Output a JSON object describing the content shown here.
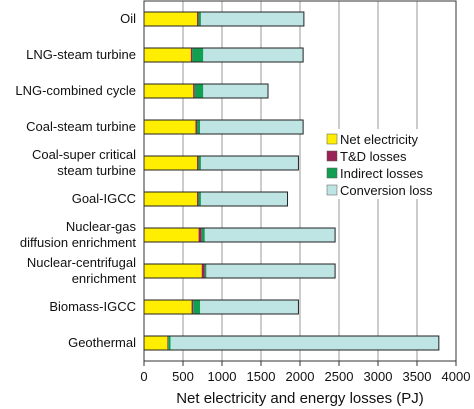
{
  "chart_data": {
    "type": "bar",
    "orientation": "horizontal",
    "stacked": true,
    "title": "",
    "xlabel": "Net electricity and energy losses (PJ)",
    "ylabel": "",
    "xlim": [
      0,
      4000
    ],
    "xticks": [
      "0",
      "500",
      "1000",
      "1500",
      "2000",
      "2500",
      "3000",
      "3500",
      "4000"
    ],
    "grid": "vertical lines",
    "legend_position": "right",
    "categories": [
      [
        "Oil"
      ],
      [
        "LNG-steam turbine"
      ],
      [
        "LNG-combined cycle"
      ],
      [
        "Coal-steam turbine"
      ],
      [
        "Coal-super critical",
        "steam turbine"
      ],
      [
        "Goal-IGCC"
      ],
      [
        "Nuclear-gas",
        "diffusion enrichment"
      ],
      [
        "Nuclear-centrifugal",
        "enrichment"
      ],
      [
        "Biomass-IGCC"
      ],
      [
        "Geothermal"
      ]
    ],
    "series": [
      {
        "name": "Net electricity",
        "color": "#ffee00",
        "values": [
          680,
          600,
          630,
          660,
          680,
          680,
          700,
          740,
          610,
          300
        ]
      },
      {
        "name": "T&D losses",
        "color": "#9b2257",
        "values": [
          20,
          20,
          20,
          20,
          20,
          20,
          40,
          40,
          20,
          10
        ]
      },
      {
        "name": "Indirect losses",
        "color": "#11a052",
        "values": [
          30,
          140,
          110,
          40,
          30,
          30,
          40,
          20,
          90,
          30
        ]
      },
      {
        "name": "Conversion loss",
        "color": "#bfe4e4",
        "values": [
          1320,
          1280,
          830,
          1320,
          1250,
          1110,
          1670,
          1650,
          1260,
          3440
        ]
      }
    ]
  }
}
